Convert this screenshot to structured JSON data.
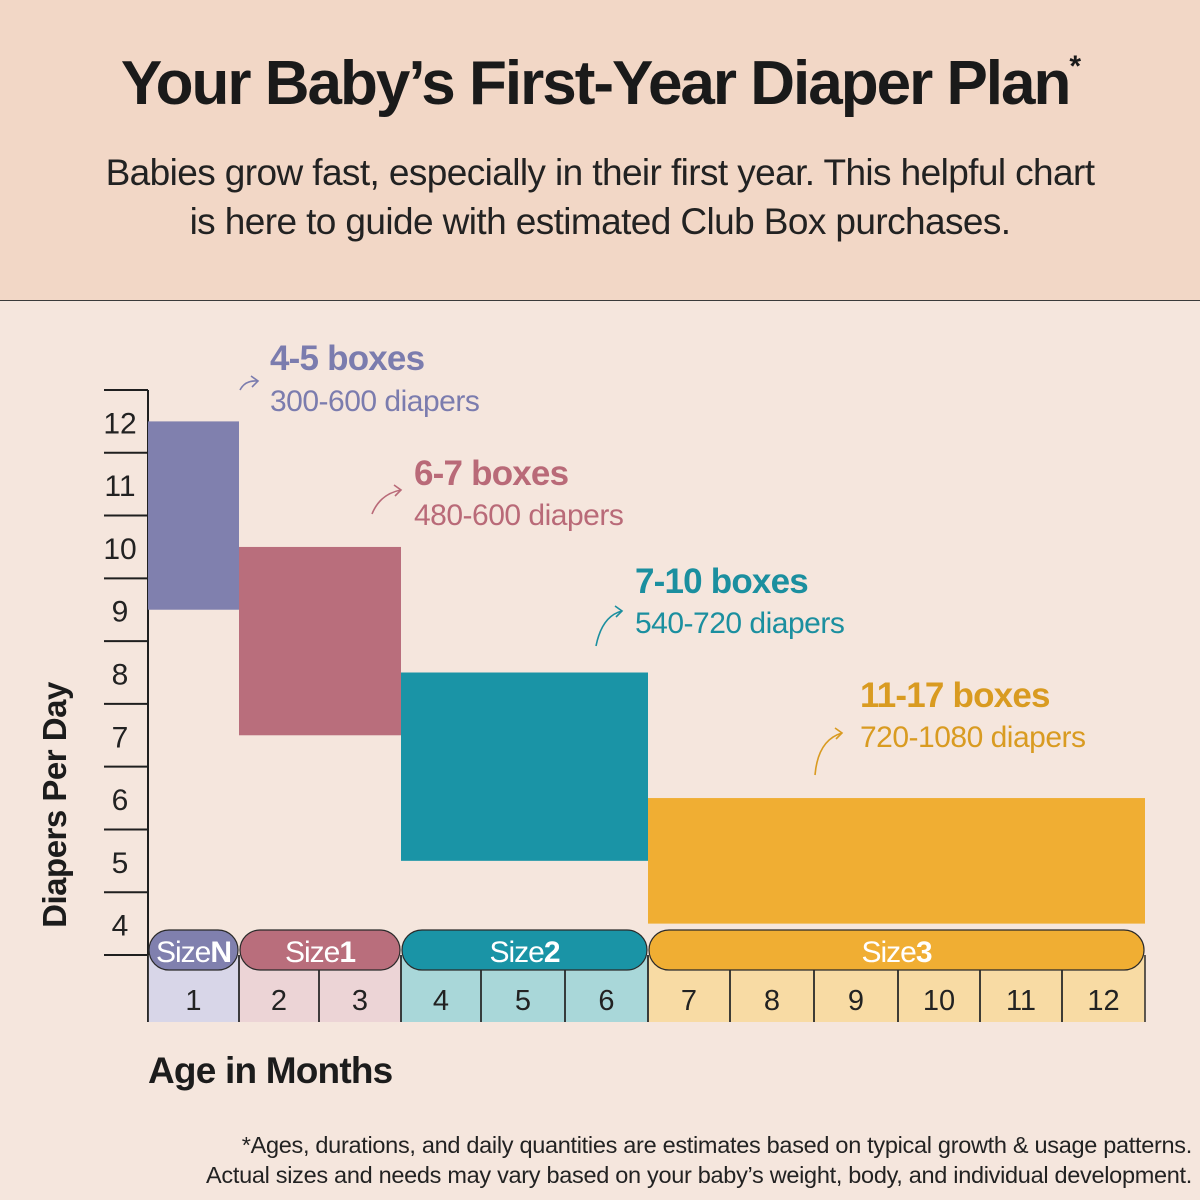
{
  "header": {
    "title": "Your Baby’s First-Year Diaper Plan",
    "title_mark": "*",
    "subtitle_line1": "Babies grow fast, especially in their first year. This helpful chart",
    "subtitle_line2": "is here to guide with estimated Club Box purchases."
  },
  "footnote": {
    "line1": "*Ages, durations, and daily quantities are estimates based on typical growth & usage patterns.",
    "line2": "Actual sizes and needs may vary based on your baby’s weight, body, and individual development."
  },
  "chart_data": {
    "type": "bar",
    "ylabel": "Diapers Per Day",
    "xlabel": "Age in Months",
    "ylim": [
      3.5,
      12.5
    ],
    "yticks": [
      4,
      5,
      6,
      7,
      8,
      9,
      10,
      11,
      12
    ],
    "months": [
      1,
      2,
      3,
      4,
      5,
      6,
      7,
      8,
      9,
      10,
      11,
      12
    ],
    "series": [
      {
        "size_prefix": "Size",
        "size_suffix": "N",
        "months": [
          1
        ],
        "min": 9,
        "max": 12,
        "boxes": "4-5 boxes",
        "diapers": "300-600 diapers",
        "color": "#8080ae",
        "light": "#d8d6e8",
        "text_color": "#7b7cae"
      },
      {
        "size_prefix": "Size",
        "size_suffix": "1",
        "months": [
          2,
          3
        ],
        "min": 7,
        "max": 10,
        "boxes": "6-7 boxes",
        "diapers": "480-600 diapers",
        "color": "#b96e7c",
        "light": "#ecd4d6",
        "text_color": "#b96a78"
      },
      {
        "size_prefix": "Size",
        "size_suffix": "2",
        "months": [
          4,
          5,
          6
        ],
        "min": 5,
        "max": 8,
        "boxes": "7-10 boxes",
        "diapers": "540-720 diapers",
        "color": "#1a94a6",
        "light": "#a9d7d9",
        "text_color": "#1b8f9f"
      },
      {
        "size_prefix": "Size",
        "size_suffix": "3",
        "months": [
          7,
          8,
          9,
          10,
          11,
          12
        ],
        "min": 4,
        "max": 6,
        "boxes": "11-17 boxes",
        "diapers": "720-1080 diapers",
        "color": "#f0ae33",
        "light": "#f8dba4",
        "text_color": "#d99b21"
      }
    ]
  }
}
